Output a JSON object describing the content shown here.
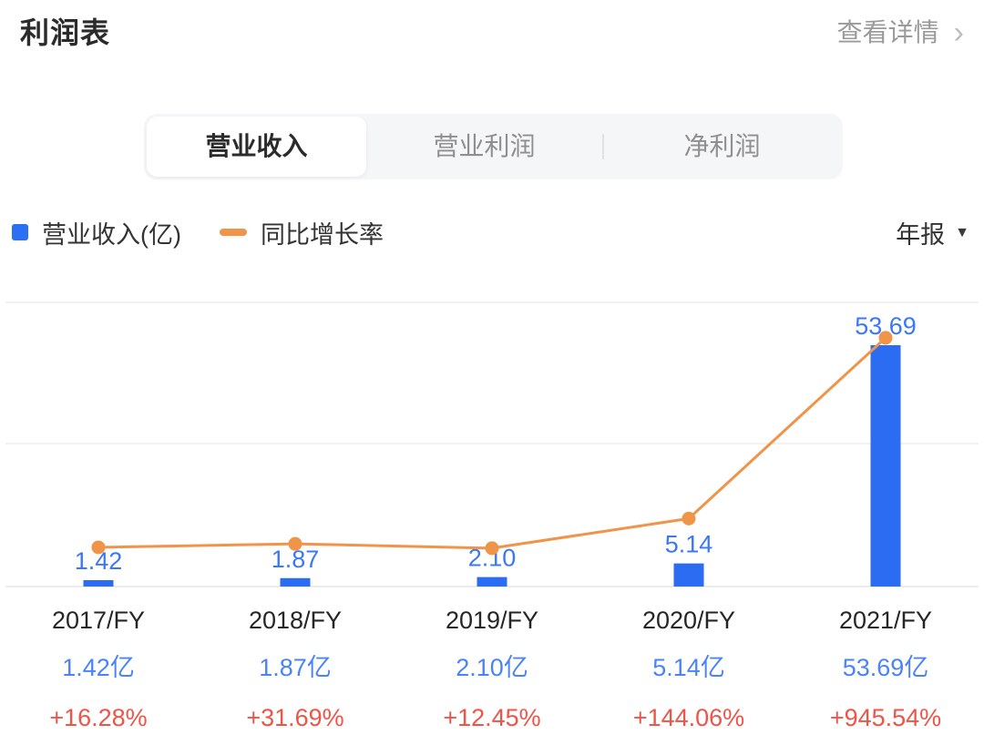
{
  "header": {
    "title": "利润表",
    "view_details_label": "查看详情",
    "chevron": "›"
  },
  "tabs": [
    {
      "key": "operating-revenue",
      "label": "营业收入",
      "active": true
    },
    {
      "key": "operating-profit",
      "label": "营业利润",
      "active": false
    },
    {
      "key": "net-profit",
      "label": "净利润",
      "active": false
    }
  ],
  "legend": {
    "bar_label": "营业收入(亿)",
    "line_label": "同比增长率"
  },
  "period_selector": {
    "label": "年报",
    "arrow": "▼"
  },
  "chart_data": {
    "type": "bar",
    "subtype": "bar-with-growth-line",
    "title": "营业收入",
    "categories": [
      "2017/FY",
      "2018/FY",
      "2019/FY",
      "2020/FY",
      "2021/FY"
    ],
    "series": [
      {
        "name": "营业收入(亿)",
        "type": "bar",
        "values": [
          1.42,
          1.87,
          2.1,
          5.14,
          53.69
        ],
        "labels": [
          "1.42",
          "1.87",
          "2.10",
          "5.14",
          "53.69"
        ]
      },
      {
        "name": "同比增长率",
        "type": "line",
        "values": [
          16.28,
          31.69,
          12.45,
          144.06,
          945.54
        ],
        "unit": "%"
      }
    ],
    "bar_axis_range": [
      0,
      55
    ],
    "line_axis_range_pct": [
      0,
      1000
    ],
    "grid": true,
    "legend_position": "top",
    "footer_rows": {
      "years": [
        "2017/FY",
        "2018/FY",
        "2019/FY",
        "2020/FY",
        "2021/FY"
      ],
      "revenue": [
        "1.42亿",
        "1.87亿",
        "2.10亿",
        "5.14亿",
        "53.69亿"
      ],
      "growth": [
        "+16.28%",
        "+31.69%",
        "+12.45%",
        "+144.06%",
        "+945.54%"
      ]
    }
  },
  "colors": {
    "bar": "#2b6cf3",
    "bar_label": "#3b78f7",
    "line": "#f09449",
    "legend_bar_swatch": "#2b6ff2",
    "legend_line_swatch": "#f09449",
    "revenue_text": "#4a83fa",
    "growth_text": "#ee5448",
    "title_text": "#2b2b2b",
    "muted_text": "#9a9a9a",
    "gridline": "#f2f2f2",
    "baseline": "#ececec"
  }
}
